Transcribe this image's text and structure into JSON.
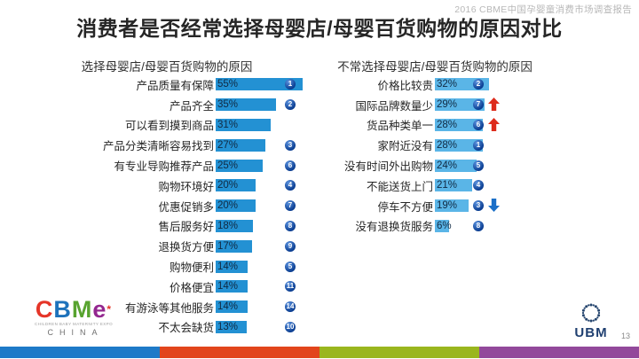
{
  "page": {
    "report_header": "2016 CBME中国孕婴童消费市场调查报告",
    "title": "消费者是否经常选择母婴店/母婴百货购物的原因对比",
    "page_number": "13"
  },
  "chart_data": [
    {
      "type": "bar",
      "orientation": "horizontal",
      "title": "选择母婴店/母婴百货购物的原因",
      "categories": [
        "产品质量有保障",
        "产品齐全",
        "可以看到摸到商品",
        "产品分类清晰容易找到",
        "有专业导购推荐产品",
        "购物环境好",
        "优惠促销多",
        "售后服务好",
        "退换货方便",
        "购物便利",
        "价格便宜",
        "有游泳等其他服务",
        "不太会缺货"
      ],
      "values": [
        55,
        35,
        31,
        27,
        25,
        20,
        20,
        18,
        17,
        14,
        14,
        14,
        13
      ],
      "value_suffix": "%",
      "rank_badges": [
        1,
        2,
        null,
        3,
        6,
        4,
        7,
        8,
        9,
        5,
        11,
        14,
        10
      ],
      "trend_arrows": [
        null,
        null,
        null,
        null,
        null,
        null,
        null,
        null,
        null,
        null,
        null,
        null,
        null
      ],
      "bar_color": "#2391d3",
      "xlim": [
        0,
        60
      ],
      "grid": false,
      "legend": "none"
    },
    {
      "type": "bar",
      "orientation": "horizontal",
      "title": "不常选择母婴店/母婴百货购物的原因",
      "categories": [
        "价格比较贵",
        "国际品牌数量少",
        "货品种类单一",
        "家附近没有",
        "没有时间外出购物",
        "不能送货上门",
        "停车不方便",
        "没有退换货服务"
      ],
      "values": [
        32,
        29,
        28,
        28,
        24,
        21,
        19,
        6
      ],
      "value_suffix": "%",
      "rank_badges": [
        2,
        7,
        6,
        1,
        5,
        4,
        3,
        8
      ],
      "trend_arrows": [
        null,
        "up",
        "up",
        null,
        null,
        null,
        "down",
        null
      ],
      "bar_color": "#5ab5e7",
      "xlim": [
        0,
        60
      ],
      "grid": false,
      "legend": "none"
    }
  ],
  "footer": {
    "cbme_logo": {
      "letters": [
        "C",
        "B",
        "M",
        "e"
      ],
      "letter_colors": [
        "#e53528",
        "#1d72bb",
        "#58a32f",
        "#93278f"
      ],
      "asterisk": "*",
      "asterisk_color": "#e53528",
      "tagline": "CHILDREN BABY MATERNITY EXPO",
      "region": "CHINA"
    },
    "ubm_label": "UBM",
    "stripe_colors": [
      "#1e7ac8",
      "#e2451c",
      "#9ab61e",
      "#92499b"
    ]
  },
  "colors": {
    "title_text": "#262626",
    "report_header_text": "#b8b8b8",
    "badge": "#0a3d91",
    "arrow_up": "#dd2b1c",
    "arrow_down": "#1b6fc8",
    "ubm_navy": "#1f3f70",
    "value_text": "#102a43"
  }
}
